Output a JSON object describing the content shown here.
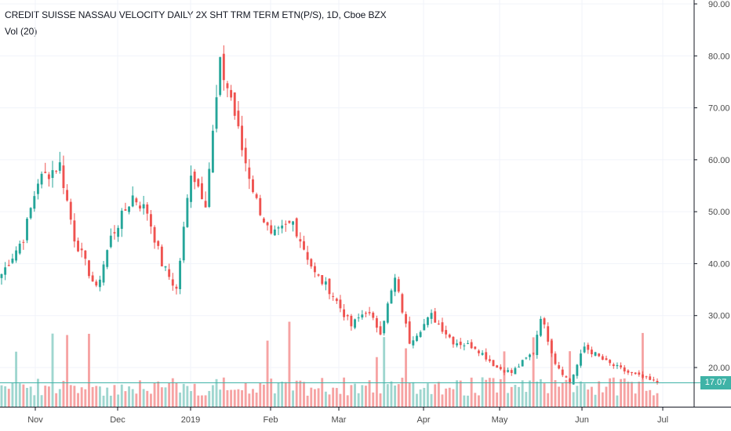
{
  "title": "CREDIT SUISSE NASSAU VELOCITY DAILY 2X SHT TRM TERM ETN(P/S), 1D, Cboe BZX",
  "volume_label": "Vol (20)",
  "last_price_label": "17.07",
  "colors": {
    "up": "#26a69a",
    "down": "#ef5350",
    "vol_up": "#9fd6cf",
    "vol_down": "#f6a3a3",
    "grid": "#f0f3fa",
    "axis": "#131722",
    "last_line": "#3fb3a7"
  },
  "chart_data": {
    "type": "candlestick",
    "title": "CREDIT SUISSE NASSAU VELOCITY DAILY 2X SHT TRM TERM ETN(P/S), 1D, Cboe BZX",
    "price_axis": {
      "ticks": [
        "20.00",
        "30.00",
        "40.00",
        "50.00",
        "60.00",
        "70.00",
        "80.00",
        "90.00"
      ],
      "range": [
        12,
        90
      ]
    },
    "time_axis": {
      "ticks": [
        "Nov",
        "Dec",
        "2019",
        "Feb",
        "Mar",
        "Apr",
        "May",
        "Jun",
        "Jul"
      ]
    },
    "last_price": 17.07,
    "grid": true,
    "close_anchors": [
      [
        0,
        38
      ],
      [
        6,
        45
      ],
      [
        10,
        56
      ],
      [
        16,
        59
      ],
      [
        20,
        45
      ],
      [
        26,
        35
      ],
      [
        30,
        45
      ],
      [
        36,
        53
      ],
      [
        40,
        50
      ],
      [
        44,
        40
      ],
      [
        48,
        35
      ],
      [
        52,
        58
      ],
      [
        56,
        52
      ],
      [
        60,
        78
      ],
      [
        63,
        72
      ],
      [
        66,
        62
      ],
      [
        70,
        52
      ],
      [
        74,
        45
      ],
      [
        80,
        48
      ],
      [
        86,
        38
      ],
      [
        90,
        35
      ],
      [
        96,
        28
      ],
      [
        100,
        31
      ],
      [
        104,
        27
      ],
      [
        108,
        37
      ],
      [
        112,
        25
      ],
      [
        118,
        30
      ],
      [
        124,
        25
      ],
      [
        130,
        24
      ],
      [
        136,
        20
      ],
      [
        140,
        19
      ],
      [
        146,
        23
      ],
      [
        148,
        30
      ],
      [
        152,
        21
      ],
      [
        156,
        17
      ],
      [
        160,
        24
      ],
      [
        166,
        21
      ],
      [
        172,
        19
      ],
      [
        176,
        18
      ],
      [
        180,
        17
      ]
    ],
    "volume_scale_note": "volume pane without printed scale"
  }
}
